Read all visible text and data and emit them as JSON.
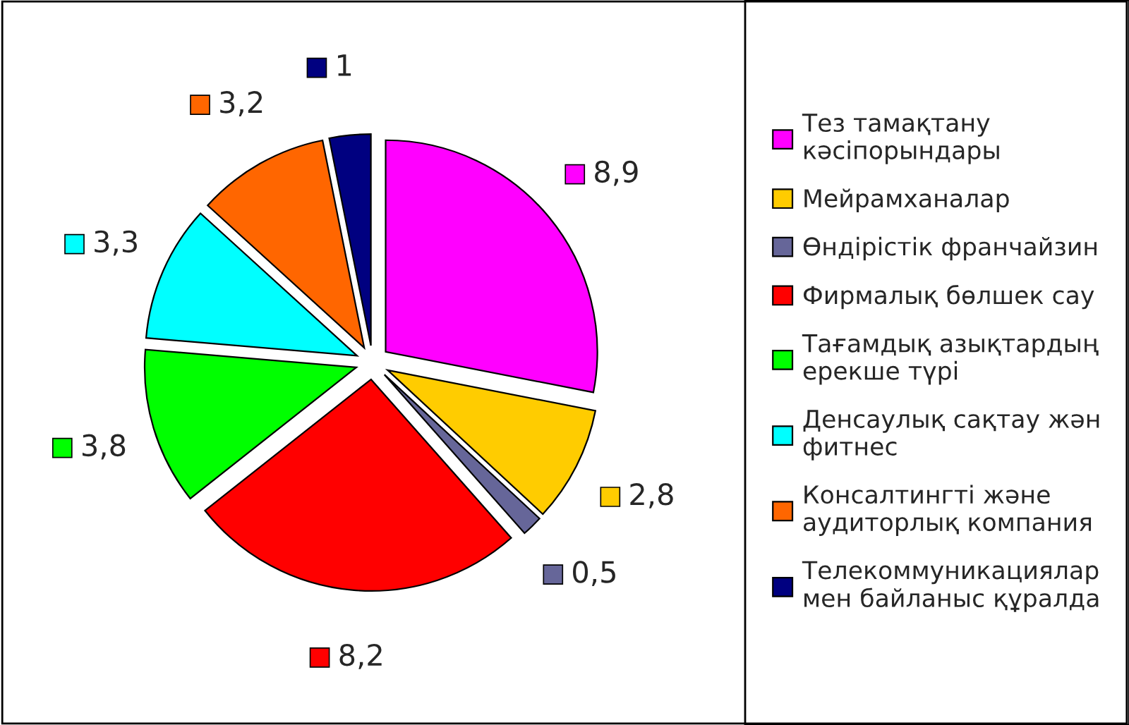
{
  "chart_data": {
    "type": "pie",
    "categories": [
      "Тез тамақтану\nкәсіпорындары",
      "Мейрамханалар",
      "Өндірістік франчайзин",
      "Фирмалық бөлшек сау",
      "Тағамдық азықтардың\nерекше түрі",
      "Денсаулық сақтау жән\nфитнес",
      "Консалтингті және\nаудиторлық компания",
      "Телекоммуникациялар\nмен байланыс құралда"
    ],
    "values": [
      8.9,
      2.8,
      0.5,
      8.2,
      3.8,
      3.3,
      3.2,
      1
    ],
    "value_labels": [
      "8,9",
      "2,8",
      "0,5",
      "8,2",
      "3,8",
      "3,3",
      "3,2",
      "1"
    ],
    "colors": [
      "#ff00ff",
      "#ffcc00",
      "#666699",
      "#ff0000",
      "#00ff00",
      "#00ffff",
      "#ff6600",
      "#000080"
    ],
    "legend": "right"
  }
}
